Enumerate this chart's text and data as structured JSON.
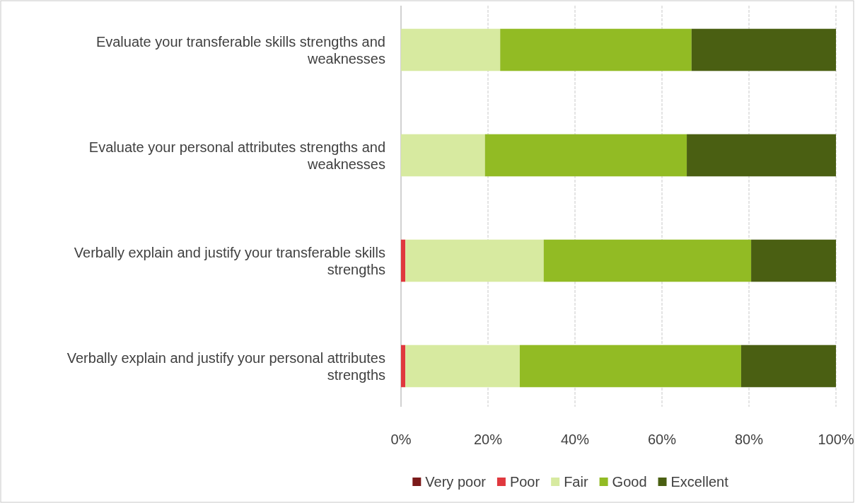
{
  "chart_data": {
    "type": "bar",
    "orientation": "horizontal",
    "stacked": true,
    "categories": [
      "Evaluate your transferable skills strengths and weaknesses",
      "Evaluate your personal attributes strengths and weaknesses",
      "Verbally explain and justify your transferable skills strengths",
      "Verbally explain and justify your personal attributes strengths"
    ],
    "series": [
      {
        "name": "Very poor",
        "color": "#7b1a1a",
        "values": [
          0,
          0,
          0,
          0
        ]
      },
      {
        "name": "Poor",
        "color": "#e0383e",
        "values": [
          0,
          0,
          1,
          1
        ]
      },
      {
        "name": "Fair",
        "color": "#d7eaa0",
        "values": [
          22.8,
          19.3,
          31.8,
          26.3
        ]
      },
      {
        "name": "Good",
        "color": "#92bb24",
        "values": [
          44,
          46.4,
          47.7,
          50.9
        ]
      },
      {
        "name": "Excellent",
        "color": "#4a5f12",
        "values": [
          33.2,
          34.3,
          19.5,
          21.8
        ]
      }
    ],
    "xlim": [
      0,
      100
    ],
    "xticks": [
      {
        "value": 0,
        "label": "0%"
      },
      {
        "value": 20,
        "label": "20%"
      },
      {
        "value": 40,
        "label": "40%"
      },
      {
        "value": 60,
        "label": "60%"
      },
      {
        "value": 80,
        "label": "80%"
      },
      {
        "value": 100,
        "label": "100%"
      }
    ],
    "grid": "x",
    "legend": "bottom"
  }
}
